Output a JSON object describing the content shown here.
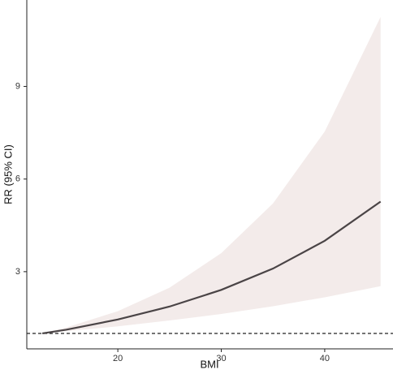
{
  "chart_data": {
    "type": "line_band",
    "xlabel": "BMI",
    "ylabel": "RR (95% CI)",
    "x": [
      12.7,
      15,
      20,
      25,
      30,
      35,
      40,
      45.4
    ],
    "values": [
      1,
      1.12,
      1.45,
      1.87,
      2.41,
      3.1,
      4.0,
      5.27
    ],
    "ci_lower": [
      1,
      1.07,
      1.23,
      1.42,
      1.63,
      1.88,
      2.17,
      2.53
    ],
    "ci_upper": [
      1,
      1.19,
      1.72,
      2.48,
      3.6,
      5.21,
      7.54,
      11.25
    ],
    "color": "#4a4446",
    "band_color": "#f3ebea",
    "reference_line": 1,
    "xlim": [
      11.2,
      46.6
    ],
    "ylim": [
      0.5,
      11.8
    ],
    "xticks": [
      20,
      30,
      40
    ],
    "yticks": [
      3,
      6,
      9
    ],
    "grid": false
  }
}
